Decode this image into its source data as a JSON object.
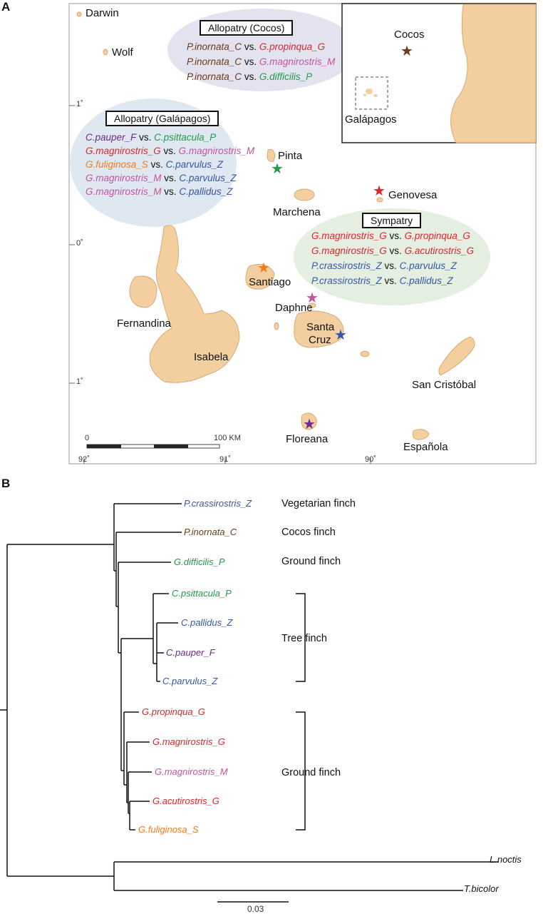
{
  "colors": {
    "purple": "#6b2a8c",
    "green": "#23994a",
    "red": "#e2232b",
    "pink": "#c4549f",
    "orange": "#f07b1f",
    "blue": "#3656a6",
    "brown": "#6b3a17",
    "land": "#f3cfa0",
    "land_edge": "#d9a977"
  },
  "panel_a": {
    "label": "A",
    "places": {
      "darwin": "Darwin",
      "wolf": "Wolf",
      "pinta": "Pinta",
      "marchena": "Marchena",
      "genovesa": "Genovesa",
      "santiago": "Santiago",
      "daphne": "Daphne",
      "fernandina": "Fernandina",
      "isabela": "Isabela",
      "santa_cruz_1": "Santa",
      "santa_cruz_2": "Cruz",
      "san_cristobal": "San Cristóbal",
      "floreana": "Floreana",
      "espanola": "Española",
      "cocos": "Cocos",
      "galapagos": "Galápagos"
    },
    "lat_ticks": [
      "1˚",
      "0˚",
      "1˚"
    ],
    "lon_ticks": [
      "92˚",
      "91˚",
      "90˚"
    ],
    "scale": {
      "start": "0",
      "end": "100 KM"
    },
    "allopatry_cocos": {
      "title": "Allopatry (Cocos)",
      "pairs": [
        {
          "a": "P.inornata_C",
          "ac": "brown",
          "b": "G.propinqua_G",
          "bc": "red"
        },
        {
          "a": "P.inornata_C",
          "ac": "brown",
          "b": "G.magnirostris_M",
          "bc": "pink"
        },
        {
          "a": "P.inornata_C",
          "ac": "brown",
          "b": "G.difficilis_P",
          "bc": "green"
        }
      ]
    },
    "allopatry_galapagos": {
      "title": "Allopatry (Galápagos)",
      "pairs": [
        {
          "a": "C.pauper_F",
          "ac": "purple",
          "b": "C.psittacula_P",
          "bc": "green"
        },
        {
          "a": "G.magnirostris_G",
          "ac": "red",
          "b": "G.magnirostris_M",
          "bc": "pink"
        },
        {
          "a": "G.fuliginosa_S",
          "ac": "orange",
          "b": "C.parvulus_Z",
          "bc": "blue"
        },
        {
          "a": "G.magnirostris_M",
          "ac": "pink",
          "b": "C.parvulus_Z",
          "bc": "blue"
        },
        {
          "a": "G.magnirostris_M",
          "ac": "pink",
          "b": "C.pallidus_Z",
          "bc": "blue"
        }
      ]
    },
    "sympatry": {
      "title": "Sympatry",
      "pairs": [
        {
          "a": "G.magnirostris_G",
          "ac": "red",
          "b": "G.propinqua_G",
          "bc": "red"
        },
        {
          "a": "G.magnirostris_G",
          "ac": "red",
          "b": "G.acutirostris_G",
          "bc": "red"
        },
        {
          "a": "P.crassirostris_Z",
          "ac": "blue",
          "b": "C.parvulus_Z",
          "bc": "blue"
        },
        {
          "a": "P.crassirostris_Z",
          "ac": "blue",
          "b": "C.pallidus_Z",
          "bc": "blue"
        }
      ]
    },
    "vs": "vs."
  },
  "panel_b": {
    "label": "B",
    "tips": [
      {
        "name": "P.crassirostris_Z",
        "color": "blue"
      },
      {
        "name": "P.inornata_C",
        "color": "brown"
      },
      {
        "name": "G.difficilis_P",
        "color": "green"
      },
      {
        "name": "C.psittacula_P",
        "color": "green"
      },
      {
        "name": "C.pallidus_Z",
        "color": "blue"
      },
      {
        "name": "C.pauper_F",
        "color": "purple"
      },
      {
        "name": "C.parvulus_Z",
        "color": "blue"
      },
      {
        "name": "G.propinqua_G",
        "color": "red"
      },
      {
        "name": "G.magnirostris_G",
        "color": "red"
      },
      {
        "name": "G.magnirostris_M",
        "color": "pink"
      },
      {
        "name": "G.acutirostris_G",
        "color": "red"
      },
      {
        "name": "G.fuliginosa_S",
        "color": "orange"
      },
      {
        "name": "L.noctis",
        "color": "black"
      },
      {
        "name": "T.bicolor",
        "color": "black"
      }
    ],
    "groups": {
      "vegetarian": "Vegetarian finch",
      "cocos": "Cocos finch",
      "ground1": "Ground finch",
      "tree": "Tree finch",
      "ground2": "Ground finch"
    },
    "scale_label": "0.03"
  }
}
